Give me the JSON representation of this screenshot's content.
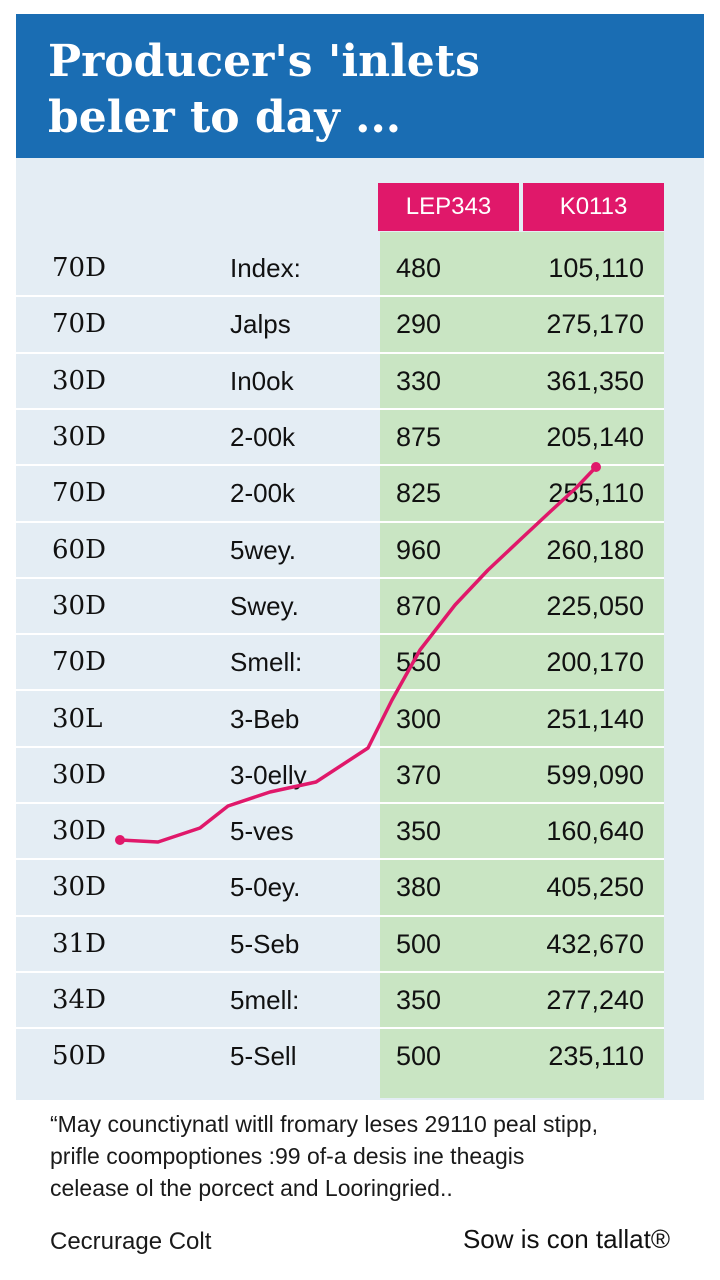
{
  "header": {
    "title": "Producer's 'inlets\nbeler to day ..."
  },
  "columns": {
    "col1_header": "LEP343",
    "col2_header": "K0113"
  },
  "rows": [
    {
      "code": "70D",
      "name": "Index:",
      "v1": "480",
      "v2": "105,110"
    },
    {
      "code": "70D",
      "name": "Jalps",
      "v1": "290",
      "v2": "275,170"
    },
    {
      "code": "30D",
      "name": "In0ok",
      "v1": "330",
      "v2": "361,350"
    },
    {
      "code": "30D",
      "name": "2-00k",
      "v1": "875",
      "v2": "205,140"
    },
    {
      "code": "70D",
      "name": "2-00k",
      "v1": "825",
      "v2": "255,110"
    },
    {
      "code": "60D",
      "name": "5wey.",
      "v1": "960",
      "v2": "260,180"
    },
    {
      "code": "30D",
      "name": "Swey.",
      "v1": "870",
      "v2": "225,050"
    },
    {
      "code": "70D",
      "name": "Smell:",
      "v1": "550",
      "v2": "200,170"
    },
    {
      "code": "30L",
      "name": "3-Beb",
      "v1": "300",
      "v2": "251,140"
    },
    {
      "code": "30D",
      "name": "3-0elly",
      "v1": "370",
      "v2": "599,090"
    },
    {
      "code": "30D",
      "name": "5-ves",
      "v1": "350",
      "v2": "160,640"
    },
    {
      "code": "30D",
      "name": "5-0ey.",
      "v1": "380",
      "v2": "405,250"
    },
    {
      "code": "31D",
      "name": "5-Seb",
      "v1": "500",
      "v2": "432,670"
    },
    {
      "code": "34D",
      "name": "5mell:",
      "v1": "350",
      "v2": "277,240"
    },
    {
      "code": "50D",
      "name": "5-Sell",
      "v1": "500",
      "v2": "235,110"
    }
  ],
  "chart_data": {
    "type": "table",
    "columns": [
      "",
      "",
      "LEP343",
      "K0113"
    ],
    "rows": [
      [
        "70D",
        "Index:",
        "480",
        "105,110"
      ],
      [
        "70D",
        "Jalps",
        "290",
        "275,170"
      ],
      [
        "30D",
        "In0ok",
        "330",
        "361,350"
      ],
      [
        "30D",
        "2-00k",
        "875",
        "205,140"
      ],
      [
        "70D",
        "2-00k",
        "825",
        "255,110"
      ],
      [
        "60D",
        "5wey.",
        "960",
        "260,180"
      ],
      [
        "30D",
        "Swey.",
        "870",
        "225,050"
      ],
      [
        "70D",
        "Smell:",
        "550",
        "200,170"
      ],
      [
        "30L",
        "3-Beb",
        "300",
        "251,140"
      ],
      [
        "30D",
        "3-0elly",
        "370",
        "599,090"
      ],
      [
        "30D",
        "5-ves",
        "350",
        "160,640"
      ],
      [
        "30D",
        "5-0ey.",
        "380",
        "405,250"
      ],
      [
        "31D",
        "5-Seb",
        "500",
        "432,670"
      ],
      [
        "34D",
        "5mell:",
        "350",
        "277,240"
      ],
      [
        "50D",
        "5-Sell",
        "500",
        "235,110"
      ]
    ],
    "trend_color": "#e0186a"
  },
  "colors": {
    "header_bg": "#1a6db3",
    "accent": "#e0186a",
    "value_columns_bg": "#c9e5c3",
    "panel_bg": "#e4edf4"
  },
  "footnote": "“May counctiynatl witll fromary leses 29110 peal stipp,\nprifle coompoptiones :99 of-a desis ine theagis\ncelease ol the porcect and Looringried..",
  "footer": {
    "left": "Cecrurage Colt",
    "right": "Sow is con tallat®"
  }
}
